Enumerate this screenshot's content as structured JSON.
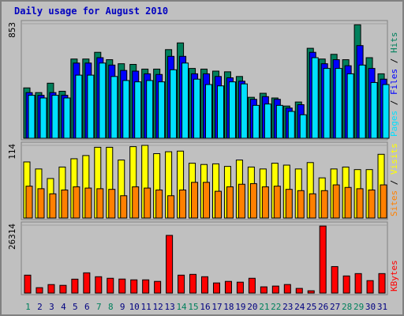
{
  "chart_data": [
    {
      "type": "bar",
      "title": "Daily usage for August 2010",
      "ylim": [
        0,
        853
      ],
      "yticks": [
        853
      ],
      "legend_separator": "/",
      "series": [
        {
          "name": "Hits",
          "color": "#00805c",
          "values": [
            375,
            340,
            410,
            350,
            590,
            590,
            640,
            585,
            555,
            550,
            515,
            515,
            660,
            710,
            520,
            515,
            500,
            495,
            460,
            305,
            335,
            300,
            240,
            270,
            670,
            590,
            625,
            585,
            845,
            600,
            480
          ]
        },
        {
          "name": "Files",
          "color": "#0000ff",
          "values": [
            340,
            320,
            340,
            320,
            560,
            560,
            600,
            545,
            505,
            500,
            480,
            475,
            610,
            610,
            480,
            480,
            460,
            450,
            425,
            290,
            310,
            290,
            225,
            250,
            640,
            555,
            585,
            540,
            690,
            520,
            440
          ]
        },
        {
          "name": "Pages",
          "color": "#00e0ff",
          "values": [
            320,
            300,
            320,
            300,
            470,
            470,
            560,
            460,
            430,
            420,
            430,
            420,
            510,
            560,
            440,
            400,
            390,
            420,
            405,
            245,
            255,
            245,
            200,
            175,
            600,
            520,
            520,
            480,
            545,
            415,
            400
          ]
        }
      ]
    },
    {
      "type": "bar",
      "ylim": [
        0,
        114
      ],
      "yticks": [
        114
      ],
      "legend_separator": "/",
      "series": [
        {
          "name": "Visits",
          "color": "#ffff00",
          "values": [
            88,
            77,
            62,
            80,
            93,
            98,
            111,
            111,
            91,
            112,
            114,
            101,
            104,
            105,
            86,
            84,
            85,
            81,
            91,
            80,
            77,
            86,
            83,
            77,
            87,
            63,
            77,
            80,
            76,
            76,
            100
          ]
        },
        {
          "name": "Sites",
          "color": "#ff8000",
          "values": [
            50,
            46,
            38,
            44,
            49,
            47,
            46,
            45,
            35,
            49,
            47,
            44,
            35,
            44,
            56,
            56,
            42,
            49,
            53,
            54,
            49,
            50,
            45,
            43,
            38,
            43,
            52,
            48,
            46,
            44,
            52
          ]
        }
      ]
    },
    {
      "type": "bar",
      "ylim": [
        0,
        26314
      ],
      "yticks": [
        26314
      ],
      "categories": [
        "1",
        "2",
        "3",
        "4",
        "5",
        "6",
        "7",
        "8",
        "9",
        "10",
        "11",
        "12",
        "13",
        "14",
        "15",
        "16",
        "17",
        "18",
        "19",
        "20",
        "21",
        "22",
        "23",
        "24",
        "25",
        "26",
        "27",
        "28",
        "29",
        "30",
        "31"
      ],
      "highlight_categories": [
        0,
        6,
        7,
        13,
        14,
        20,
        21,
        27,
        28
      ],
      "category_color": "#00805c",
      "highlight_color": "#00805c",
      "series": [
        {
          "name": "KBytes",
          "color": "#ff0000",
          "values": [
            6950,
            2100,
            3300,
            3000,
            5400,
            7850,
            6340,
            5740,
            5440,
            5130,
            5130,
            4530,
            22350,
            6950,
            7250,
            6340,
            3930,
            4530,
            4230,
            5740,
            2420,
            2720,
            3320,
            1810,
            900,
            25970,
            10270,
            6640,
            7550,
            4830,
            7550
          ]
        }
      ]
    }
  ]
}
